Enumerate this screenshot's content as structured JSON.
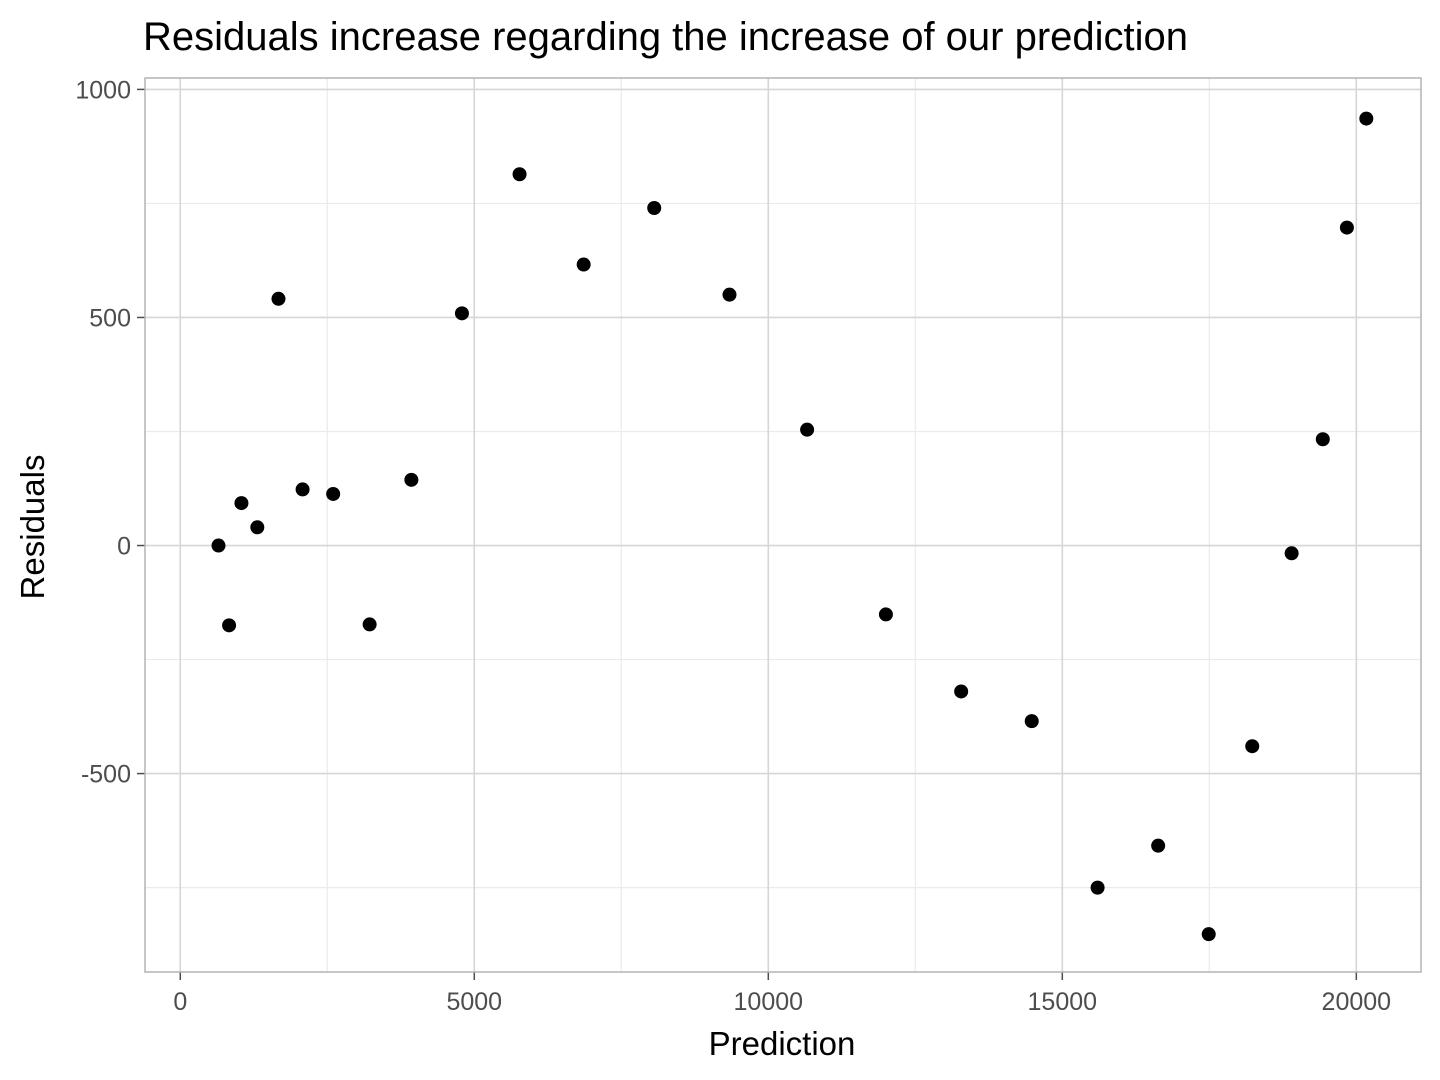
{
  "chart_data": {
    "type": "scatter",
    "title": "Residuals increase regarding the increase of our prediction",
    "xlabel": "Prediction",
    "ylabel": "Residuals",
    "xlim": [
      -600,
      21100
    ],
    "ylim": [
      -935,
      1025
    ],
    "x_ticks": [
      0,
      5000,
      10000,
      15000,
      20000
    ],
    "x_tick_labels": [
      "0",
      "5000",
      "10000",
      "15000",
      "20000"
    ],
    "y_ticks": [
      -500,
      0,
      500,
      1000
    ],
    "y_tick_labels": [
      "-500",
      "0",
      "500",
      "1000"
    ],
    "x_minor_ticks": [
      2500,
      7500,
      12500,
      17500
    ],
    "y_minor_ticks": [
      -750,
      -250,
      250,
      750
    ],
    "grid": true,
    "legend": "none",
    "point_color": "#000000",
    "series": [
      {
        "x": [
          650,
          830,
          1040,
          1310,
          1670,
          2080,
          2600,
          3220,
          3930,
          4790,
          5770,
          6860,
          8060,
          9340,
          10660,
          12000,
          13280,
          14480,
          15600,
          16630,
          17490,
          18230,
          18900,
          19430,
          19840,
          20170
        ],
        "y": [
          0,
          -175,
          93,
          40,
          541,
          123,
          113,
          -173,
          144,
          509,
          814,
          616,
          740,
          550,
          254,
          -151,
          -320,
          -385,
          -750,
          -658,
          -852,
          -440,
          -17,
          233,
          697,
          936
        ]
      }
    ]
  }
}
